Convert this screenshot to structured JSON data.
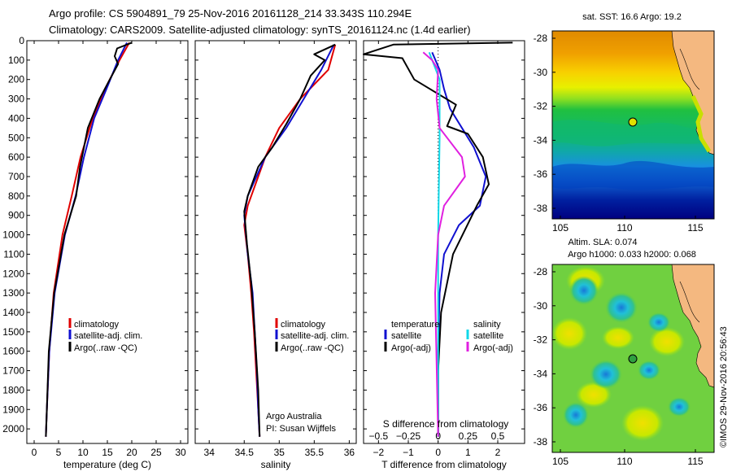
{
  "header": {
    "title_line1": "Argo profile: CS 5904891_79 25-Nov-2016 20161128_214 33.343S 110.294E",
    "title_line2": "Climatology: CARS2009. Satellite-adjusted climatology: synTS_20161124.nc (1.4d earlier)"
  },
  "colors": {
    "climatology": "#e00000",
    "satellite": "#1010d0",
    "argo": "#000000",
    "sat_salinity": "#10d8e8",
    "argo_salinity": "#e020e0"
  },
  "credit": "©IMOS 29-Nov-2016 20:56:43",
  "attribution": {
    "line1": "Argo Australia",
    "line2": "PI: Susan Wijffels"
  },
  "charts": {
    "temperature": {
      "xlabel": "temperature (deg C)",
      "xticks": [
        "0",
        "5",
        "10",
        "15",
        "20",
        "25",
        "30"
      ],
      "legend": [
        "climatology",
        "satellite-adj. clim.",
        "Argo(..raw -QC)"
      ]
    },
    "salinity": {
      "xlabel": "salinity",
      "xticks": [
        "34",
        "34.5",
        "35",
        "35.5",
        "36"
      ],
      "legend": [
        "climatology",
        "satellite-adj. clim.",
        "Argo(..raw -QC)"
      ]
    },
    "difference": {
      "xlabel": "T difference from climatology",
      "top_label": "S difference from climatology",
      "xticks": [
        "−2",
        "−1",
        "0",
        "1",
        "2"
      ],
      "top_ticks": [
        "−0.5",
        "−0.25",
        "0",
        "0.25",
        "0.5"
      ],
      "legend_temp_title": "temperature",
      "legend_sal_title": "salinity",
      "legend_temp": [
        "satellite",
        "Argo(-adj)"
      ],
      "legend_sal": [
        "satellite",
        "Argo(-adj)"
      ]
    },
    "depth_ticks": [
      "0",
      "100",
      "200",
      "300",
      "400",
      "500",
      "600",
      "700",
      "800",
      "900",
      "1000",
      "1100",
      "1200",
      "1300",
      "1400",
      "1500",
      "1600",
      "1700",
      "1800",
      "1900",
      "2000"
    ]
  },
  "maps": {
    "sst": {
      "title": "sat. SST: 16.6  Argo: 19.2",
      "lon_ticks": [
        "105",
        "110",
        "115"
      ],
      "lat_ticks": [
        "-28",
        "-30",
        "-32",
        "-34",
        "-36",
        "-38"
      ]
    },
    "sla": {
      "title_line1": "Altim. SLA: 0.074",
      "title_line2": "Argo h1000: 0.033  h2000: 0.068",
      "lon_ticks": [
        "105",
        "110",
        "115"
      ],
      "lat_ticks": [
        "-28",
        "-30",
        "-32",
        "-34",
        "-36",
        "-38"
      ]
    }
  },
  "chart_data": [
    {
      "type": "line",
      "xlabel": "temperature (deg C)",
      "xlim": [
        -1.5,
        31.5
      ],
      "ylim": [
        2075,
        0
      ],
      "y_reversed": true,
      "series": [
        {
          "name": "climatology",
          "points": [
            [
              19.5,
              10
            ],
            [
              17.5,
              100
            ],
            [
              14.5,
              250
            ],
            [
              12,
              400
            ],
            [
              9.5,
              600
            ],
            [
              7.7,
              800
            ],
            [
              5.8,
              1000
            ],
            [
              4,
              1300
            ],
            [
              3.1,
              1600
            ],
            [
              2.6,
              1900
            ],
            [
              2.4,
              2040
            ]
          ]
        },
        {
          "name": "satellite-adj. clim.",
          "points": [
            [
              19,
              10
            ],
            [
              17.2,
              100
            ],
            [
              14.8,
              250
            ],
            [
              12.3,
              400
            ],
            [
              10.2,
              600
            ],
            [
              8.5,
              800
            ],
            [
              6.3,
              1000
            ],
            [
              4.2,
              1300
            ],
            [
              3.1,
              1600
            ],
            [
              2.6,
              1900
            ],
            [
              2.4,
              2040
            ]
          ]
        },
        {
          "name": "Argo(..raw -QC)",
          "points": [
            [
              20,
              10
            ],
            [
              17,
              40
            ],
            [
              16.5,
              80
            ],
            [
              17.2,
              120
            ],
            [
              15.5,
              200
            ],
            [
              13.4,
              300
            ],
            [
              11,
              450
            ],
            [
              9.4,
              650
            ],
            [
              8.6,
              800
            ],
            [
              6.2,
              1000
            ],
            [
              4.1,
              1300
            ],
            [
              3,
              1600
            ],
            [
              2.6,
              1900
            ],
            [
              2.4,
              2040
            ]
          ]
        }
      ]
    },
    {
      "type": "line",
      "xlabel": "salinity",
      "xlim": [
        33.8,
        36.1
      ],
      "ylim": [
        2075,
        0
      ],
      "y_reversed": true,
      "series": [
        {
          "name": "climatology",
          "points": [
            [
              35.8,
              20
            ],
            [
              35.7,
              150
            ],
            [
              35.3,
              300
            ],
            [
              35,
              450
            ],
            [
              34.8,
              600
            ],
            [
              34.55,
              850
            ],
            [
              34.5,
              950
            ],
            [
              34.55,
              1100
            ],
            [
              34.6,
              1300
            ],
            [
              34.64,
              1500
            ],
            [
              34.67,
              1700
            ],
            [
              34.7,
              1900
            ],
            [
              34.72,
              2040
            ]
          ]
        },
        {
          "name": "satellite-adj. clim.",
          "points": [
            [
              35.78,
              20
            ],
            [
              35.6,
              150
            ],
            [
              35.35,
              300
            ],
            [
              35.1,
              450
            ],
            [
              34.8,
              600
            ],
            [
              34.55,
              800
            ],
            [
              34.5,
              900
            ],
            [
              34.55,
              1100
            ],
            [
              34.62,
              1300
            ],
            [
              34.65,
              1500
            ],
            [
              34.68,
              1700
            ],
            [
              34.7,
              1900
            ],
            [
              34.72,
              2040
            ]
          ]
        },
        {
          "name": "Argo(..raw -QC)",
          "points": [
            [
              35.8,
              20
            ],
            [
              35.5,
              70
            ],
            [
              35.65,
              100
            ],
            [
              35.45,
              180
            ],
            [
              35.3,
              300
            ],
            [
              35.1,
              430
            ],
            [
              34.9,
              550
            ],
            [
              34.7,
              650
            ],
            [
              34.55,
              800
            ],
            [
              34.5,
              880
            ],
            [
              34.54,
              1050
            ],
            [
              34.6,
              1250
            ],
            [
              34.65,
              1500
            ],
            [
              34.7,
              1800
            ],
            [
              34.72,
              2040
            ]
          ]
        }
      ]
    },
    {
      "type": "line",
      "xlabel": "T difference from climatology",
      "xlim": [
        -2.5,
        2.9
      ],
      "ylim": [
        2075,
        0
      ],
      "y_reversed": true,
      "series": [
        {
          "name": "temperature satellite",
          "points": [
            [
              -0.2,
              60
            ],
            [
              0.05,
              150
            ],
            [
              0.2,
              250
            ],
            [
              0.4,
              350
            ],
            [
              0.8,
              450
            ],
            [
              1.2,
              550
            ],
            [
              1.6,
              700
            ],
            [
              1.4,
              850
            ],
            [
              0.7,
              950
            ],
            [
              0.2,
              1100
            ],
            [
              0.05,
              1300
            ],
            [
              0,
              1600
            ],
            [
              0,
              2040
            ]
          ]
        },
        {
          "name": "temperature Argo(-adj)",
          "points": [
            [
              2.5,
              10
            ],
            [
              -1.5,
              20
            ],
            [
              -2.5,
              70
            ],
            [
              -1.2,
              90
            ],
            [
              -0.8,
              200
            ],
            [
              0.6,
              330
            ],
            [
              0.3,
              440
            ],
            [
              1,
              480
            ],
            [
              1.5,
              600
            ],
            [
              1.7,
              740
            ],
            [
              1.3,
              850
            ],
            [
              0.5,
              1100
            ],
            [
              0.1,
              1400
            ],
            [
              0,
              1700
            ],
            [
              0,
              2040
            ]
          ]
        },
        {
          "name": "salinity satellite",
          "points": [
            [
              -0.3,
              60
            ],
            [
              0.05,
              200
            ],
            [
              0.05,
              500
            ],
            [
              0,
              1000
            ],
            [
              0,
              1500
            ],
            [
              0,
              2040
            ]
          ]
        },
        {
          "name": "salinity Argo(-adj)",
          "points": [
            [
              -0.5,
              60
            ],
            [
              -0.2,
              100
            ],
            [
              0,
              150
            ],
            [
              -0.05,
              300
            ],
            [
              0.05,
              450
            ],
            [
              0.8,
              600
            ],
            [
              0.9,
              700
            ],
            [
              0.2,
              850
            ],
            [
              0,
              1000
            ],
            [
              -0.1,
              1300
            ],
            [
              0,
              2040
            ]
          ]
        }
      ]
    }
  ]
}
